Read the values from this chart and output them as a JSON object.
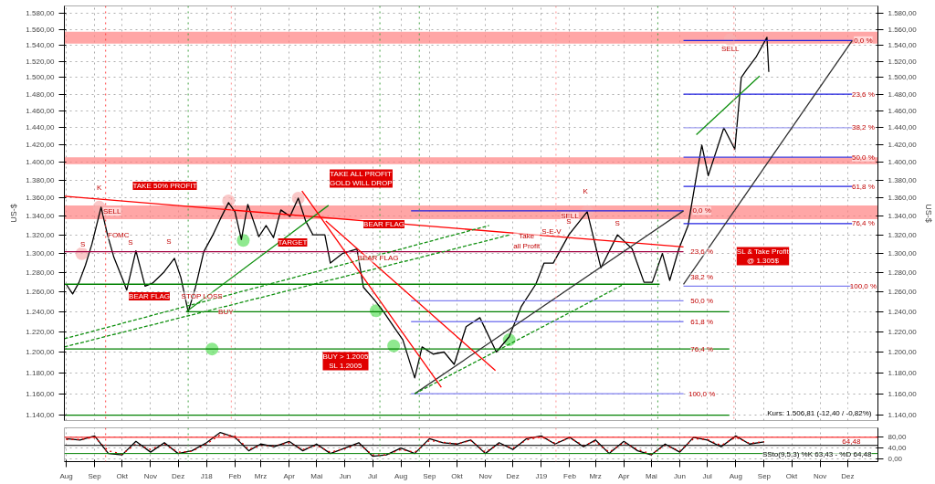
{
  "chart_data": [
    {
      "type": "line",
      "ylabel": "US-$",
      "log": "y",
      "grid": true,
      "tick_labels": "y",
      "xlim": [
        "2017-07-30",
        "2020-01-03"
      ],
      "xticks": [
        {
          "value": "2017-08-01",
          "label": null
        },
        {
          "value": "2017-09-01",
          "label": null
        },
        {
          "value": "2017-10-01",
          "label": null
        },
        {
          "value": "2017-11-01",
          "label": null
        },
        {
          "value": "2017-12-01",
          "label": null
        },
        {
          "value": "2018-01-01",
          "label": null
        },
        {
          "value": "2018-02-01",
          "label": null
        },
        {
          "value": "2018-03-01",
          "label": null
        },
        {
          "value": "2018-04-01",
          "label": null
        },
        {
          "value": "2018-05-01",
          "label": null
        },
        {
          "value": "2018-06-01",
          "label": null
        },
        {
          "value": "2018-07-01",
          "label": null
        },
        {
          "value": "2018-08-01",
          "label": null
        },
        {
          "value": "2018-09-01",
          "label": null
        },
        {
          "value": "2018-10-01",
          "label": null
        },
        {
          "value": "2018-11-01",
          "label": null
        },
        {
          "value": "2018-12-01",
          "label": null
        },
        {
          "value": "2019-01-01",
          "label": null
        },
        {
          "value": "2019-02-01",
          "label": null
        },
        {
          "value": "2019-03-01",
          "label": null
        },
        {
          "value": "2019-04-01",
          "label": null
        },
        {
          "value": "2019-05-01",
          "label": null
        },
        {
          "value": "2019-06-01",
          "label": null
        },
        {
          "value": "2019-07-01",
          "label": null
        },
        {
          "value": "2019-08-01",
          "label": null
        },
        {
          "value": "2019-09-01",
          "label": null
        },
        {
          "value": "2019-10-01",
          "label": null
        },
        {
          "value": "2019-11-01",
          "label": null
        },
        {
          "value": "2019-12-01",
          "label": null
        }
      ],
      "ylim": [
        1135,
        1590
      ],
      "yticks": [
        {
          "value": 1140,
          "label": "1.140,00"
        },
        {
          "value": 1160,
          "label": "1.160,00"
        },
        {
          "value": 1180,
          "label": "1.180,00"
        },
        {
          "value": 1200,
          "label": "1.200,00"
        },
        {
          "value": 1220,
          "label": "1.220,00"
        },
        {
          "value": 1240,
          "label": "1.240,00"
        },
        {
          "value": 1260,
          "label": "1.260,00"
        },
        {
          "value": 1280,
          "label": "1.280,00"
        },
        {
          "value": 1300,
          "label": "1.300,00"
        },
        {
          "value": 1320,
          "label": "1.320,00"
        },
        {
          "value": 1340,
          "label": "1.340,00"
        },
        {
          "value": 1360,
          "label": "1.360,00"
        },
        {
          "value": 1380,
          "label": "1.380,00"
        },
        {
          "value": 1400,
          "label": "1.400,00"
        },
        {
          "value": 1420,
          "label": "1.420,00"
        },
        {
          "value": 1440,
          "label": "1.440,00"
        },
        {
          "value": 1460,
          "label": "1.460,00"
        },
        {
          "value": 1480,
          "label": "1.480,00"
        },
        {
          "value": 1500,
          "label": "1.500,00"
        },
        {
          "value": 1520,
          "label": "1.520,00"
        },
        {
          "value": 1540,
          "label": "1.540,00"
        },
        {
          "value": 1560,
          "label": "1.560,00"
        },
        {
          "value": 1580,
          "label": "1.580,00"
        }
      ],
      "bands": [
        {
          "axis": "y",
          "from": 1542,
          "to": 1557,
          "color": "#ff8080"
        },
        {
          "axis": "y",
          "from": 1398,
          "to": 1406,
          "color": "#ff8080"
        },
        {
          "axis": "y",
          "from": 1337,
          "to": 1352,
          "color": "#ff8080"
        }
      ],
      "ref_lines": [
        {
          "axis": "x",
          "value": "2017-09-13",
          "color": "#ff4040",
          "line_style": "dotted"
        },
        {
          "axis": "x",
          "value": "2017-12-12",
          "color": "#40a040",
          "line_style": "dotted"
        },
        {
          "axis": "x",
          "value": "2018-01-28",
          "color": "#ff9090",
          "line_style": "dotted"
        },
        {
          "axis": "x",
          "value": "2018-07-09",
          "color": "#40a040",
          "line_style": "dotted"
        },
        {
          "axis": "x",
          "value": "2018-08-21",
          "color": "#40a040",
          "line_style": "dotted"
        },
        {
          "axis": "x",
          "value": "2019-01-17",
          "color": "#ff9090",
          "line_style": "dotted"
        },
        {
          "axis": "x",
          "value": "2019-05-08",
          "color": "#40a040",
          "line_style": "dotted"
        },
        {
          "axis": "x",
          "value": "2019-07-30",
          "color": "#ff9090",
          "line_style": "dotted"
        }
      ],
      "series": [
        {
          "type": "line",
          "color": "#000000",
          "x": [
            "2017-08-01",
            "2017-08-08",
            "2017-08-15",
            "2017-08-22",
            "2017-08-29",
            "2017-09-08",
            "2017-09-15",
            "2017-09-22",
            "2017-10-02",
            "2017-10-06",
            "2017-10-16",
            "2017-10-26",
            "2017-11-03",
            "2017-11-15",
            "2017-11-27",
            "2017-12-04",
            "2017-12-12",
            "2017-12-20",
            "2017-12-29",
            "2018-01-08",
            "2018-01-16",
            "2018-01-25",
            "2018-02-01",
            "2018-02-08",
            "2018-02-15",
            "2018-02-27",
            "2018-03-07",
            "2018-03-15",
            "2018-03-23",
            "2018-04-02",
            "2018-04-11",
            "2018-04-19",
            "2018-04-27",
            "2018-05-10",
            "2018-05-16",
            "2018-05-29",
            "2018-06-14",
            "2018-06-21",
            "2018-07-03",
            "2018-07-13",
            "2018-07-24",
            "2018-08-03",
            "2018-08-16",
            "2018-08-24",
            "2018-09-05",
            "2018-09-17",
            "2018-09-28",
            "2018-10-11",
            "2018-10-26",
            "2018-11-13",
            "2018-11-27",
            "2018-12-10",
            "2018-12-26",
            "2019-01-04",
            "2019-01-14",
            "2019-01-31",
            "2019-02-20",
            "2019-03-07",
            "2019-03-25",
            "2019-04-10",
            "2019-04-23",
            "2019-05-02",
            "2019-05-13",
            "2019-05-21",
            "2019-05-31",
            "2019-06-10",
            "2019-06-20",
            "2019-06-25",
            "2019-07-02",
            "2019-07-19",
            "2019-07-31",
            "2019-08-07",
            "2019-08-13",
            "2019-08-23",
            "2019-09-04",
            "2019-09-06"
          ],
          "values": [
            1268,
            1258,
            1270,
            1288,
            1310,
            1350,
            1320,
            1296,
            1272,
            1262,
            1303,
            1266,
            1269,
            1280,
            1295,
            1275,
            1240,
            1265,
            1302,
            1320,
            1337,
            1355,
            1345,
            1315,
            1353,
            1318,
            1330,
            1317,
            1347,
            1340,
            1360,
            1335,
            1320,
            1320,
            1290,
            1300,
            1305,
            1265,
            1252,
            1240,
            1225,
            1212,
            1175,
            1205,
            1198,
            1200,
            1188,
            1225,
            1234,
            1200,
            1215,
            1245,
            1268,
            1290,
            1290,
            1320,
            1345,
            1285,
            1320,
            1305,
            1270,
            1270,
            1300,
            1272,
            1305,
            1330,
            1390,
            1420,
            1385,
            1440,
            1415,
            1500,
            1510,
            1525,
            1550,
            1507
          ]
        },
        {
          "type": "line",
          "color": "#ff0000",
          "x": [
            "2017-07-30",
            "2019-06-05"
          ],
          "values": [
            1362,
            1307
          ]
        },
        {
          "type": "line",
          "color": "#a00040",
          "x": [
            "2017-07-30",
            "2019-06-05"
          ],
          "values": [
            1302,
            1302
          ]
        },
        {
          "type": "line",
          "color": "#008000",
          "x": [
            "2017-07-30",
            "2019-05-10"
          ],
          "values": [
            1268,
            1268
          ]
        },
        {
          "type": "line",
          "color": "#008000",
          "x": [
            "2017-12-10",
            "2019-07-25"
          ],
          "values": [
            1240,
            1240
          ]
        },
        {
          "type": "line",
          "color": "#008000",
          "x": [
            "2017-07-30",
            "2019-07-25"
          ],
          "values": [
            1203,
            1203
          ]
        },
        {
          "type": "line",
          "color": "#008000",
          "x": [
            "2017-07-30",
            "2019-07-25"
          ],
          "values": [
            1140,
            1140
          ]
        },
        {
          "type": "line",
          "color": "#2020e0",
          "x": [
            "2018-08-12",
            "2019-06-05"
          ],
          "values": [
            1346,
            1346
          ]
        },
        {
          "type": "line",
          "color": "#8080f0",
          "x": [
            "2018-08-12",
            "2019-06-05"
          ],
          "values": [
            1251,
            1251
          ]
        },
        {
          "type": "line",
          "color": "#8080f0",
          "x": [
            "2018-08-12",
            "2019-06-05"
          ],
          "values": [
            1230,
            1230
          ]
        },
        {
          "type": "line",
          "color": "#8080f0",
          "x": [
            "2018-08-12",
            "2019-06-05"
          ],
          "values": [
            1160,
            1160
          ]
        },
        {
          "type": "line",
          "color": "#2020e0",
          "x": [
            "2019-06-05",
            "2019-12-06"
          ],
          "values": [
            1546,
            1546
          ]
        },
        {
          "type": "line",
          "color": "#2020e0",
          "x": [
            "2019-06-05",
            "2019-12-06"
          ],
          "values": [
            1480,
            1480
          ]
        },
        {
          "type": "line",
          "color": "#a0a0f0",
          "x": [
            "2019-06-05",
            "2019-12-06"
          ],
          "values": [
            1440,
            1440
          ]
        },
        {
          "type": "line",
          "color": "#4040e0",
          "x": [
            "2019-06-05",
            "2019-12-06"
          ],
          "values": [
            1406,
            1406
          ]
        },
        {
          "type": "line",
          "color": "#2020e0",
          "x": [
            "2019-06-05",
            "2019-12-06"
          ],
          "values": [
            1373,
            1373
          ]
        },
        {
          "type": "line",
          "color": "#2020e0",
          "x": [
            "2019-06-05",
            "2019-12-06"
          ],
          "values": [
            1332,
            1332
          ]
        },
        {
          "type": "line",
          "color": "#8080f0",
          "x": [
            "2019-06-05",
            "2019-12-06"
          ],
          "values": [
            1266,
            1266
          ]
        },
        {
          "type": "line",
          "color": "#303030",
          "x": [
            "2019-06-05",
            "2019-12-06"
          ],
          "values": [
            1268,
            1546
          ]
        },
        {
          "type": "line",
          "color": "#303030",
          "x": [
            "2018-08-16",
            "2019-06-05"
          ],
          "values": [
            1160,
            1346
          ]
        },
        {
          "type": "line",
          "color": "#109010",
          "x": [
            "2017-12-10",
            "2018-05-14"
          ],
          "values": [
            1240,
            1352
          ]
        },
        {
          "type": "line",
          "color": "#109010",
          "line_style": "dashed",
          "x": [
            "2017-07-30",
            "2018-11-05"
          ],
          "values": [
            1213,
            1330
          ]
        },
        {
          "type": "line",
          "color": "#109010",
          "line_style": "dashed",
          "x": [
            "2017-07-30",
            "2018-11-28"
          ],
          "values": [
            1205,
            1320
          ]
        },
        {
          "type": "line",
          "color": "#109010",
          "line_style": "dashed",
          "x": [
            "2018-08-16",
            "2019-03-30"
          ],
          "values": [
            1160,
            1267
          ]
        },
        {
          "type": "line",
          "color": "#ff0000",
          "x": [
            "2018-04-15",
            "2018-09-14"
          ],
          "values": [
            1368,
            1166
          ]
        },
        {
          "type": "line",
          "color": "#ff0000",
          "x": [
            "2018-05-11",
            "2018-11-12"
          ],
          "values": [
            1335,
            1182
          ]
        },
        {
          "type": "line",
          "color": "#109010",
          "x": [
            "2019-06-19",
            "2019-08-27"
          ],
          "values": [
            1432,
            1502
          ]
        },
        {
          "type": "scatter",
          "color": "#60e060",
          "marker": "circle",
          "x": [
            "2018-01-07",
            "2018-02-10",
            "2018-07-05",
            "2018-07-24",
            "2018-11-27"
          ],
          "values": [
            1203,
            1314,
            1241,
            1206,
            1212
          ]
        },
        {
          "type": "scatter",
          "color": "#f8b0b0",
          "marker": "circle",
          "x": [
            "2017-08-18",
            "2017-09-06",
            "2018-01-25",
            "2018-04-11",
            "2019-02-20",
            "2019-07-26"
          ],
          "values": [
            1300,
            1350,
            1357,
            1360,
            1345,
            1547
          ]
        }
      ],
      "annotations": [
        {
          "text": "K",
          "x": "2017-09-06",
          "y": 1372
        },
        {
          "text": "SELL",
          "x": "2017-09-20",
          "y": 1345
        },
        {
          "text": "S",
          "x": "2017-08-19",
          "y": 1310
        },
        {
          "text": "S",
          "x": "2017-10-10",
          "y": 1312
        },
        {
          "text": "S",
          "x": "2017-11-21",
          "y": 1313
        },
        {
          "text": "FOMC",
          "x": "2017-09-27",
          "y": 1320
        },
        {
          "text": "STOP LOSS",
          "x": "2017-12-27",
          "y": 1256
        },
        {
          "text": "BUY",
          "x": "2018-01-22",
          "y": 1240
        },
        {
          "text": "BEAR FLAG",
          "x": "2018-07-07",
          "y": 1295
        },
        {
          "text": "Take\nall Profit",
          "x": "2018-12-16",
          "y": 1313
        },
        {
          "text": "S-E-V",
          "x": "2019-01-12",
          "y": 1324
        },
        {
          "text": "SELL",
          "x": "2019-02-01",
          "y": 1340
        },
        {
          "text": "K",
          "x": "2019-02-18",
          "y": 1368
        },
        {
          "text": "S",
          "x": "2019-01-31",
          "y": 1334
        },
        {
          "text": "S",
          "x": "2019-03-25",
          "y": 1332
        },
        {
          "text": "SELL",
          "x": "2019-07-26",
          "y": 1536
        },
        {
          "text": "0,0 %",
          "x": "2019-12-18",
          "y": 1546
        },
        {
          "text": "23,6 %",
          "x": "2019-12-18",
          "y": 1480
        },
        {
          "text": "38,2 %",
          "x": "2019-12-18",
          "y": 1440
        },
        {
          "text": "50,0 %",
          "x": "2019-12-18",
          "y": 1406
        },
        {
          "text": "61,8 %",
          "x": "2019-12-18",
          "y": 1373
        },
        {
          "text": "76,4 %",
          "x": "2019-12-18",
          "y": 1332
        },
        {
          "text": "100,0 %",
          "x": "2019-12-18",
          "y": 1266
        },
        {
          "text": "0,0 %",
          "x": "2019-06-25",
          "y": 1346
        },
        {
          "text": "23,6 %",
          "x": "2019-06-25",
          "y": 1302
        },
        {
          "text": "38,2 %",
          "x": "2019-06-25",
          "y": 1275
        },
        {
          "text": "50,0 %",
          "x": "2019-06-25",
          "y": 1251
        },
        {
          "text": "61,8 %",
          "x": "2019-06-25",
          "y": 1230
        },
        {
          "text": "76,4 %",
          "x": "2019-06-25",
          "y": 1203
        },
        {
          "text": "100,0 %",
          "x": "2019-06-25",
          "y": 1160
        },
        "BEAR FLAG",
        "TAKE 50% PROFIT",
        "TAKE ALL PROFIT\nGOLD WILL DROP",
        "TARGET",
        "BEAR FLAG",
        "BUY > 1.2005\nSL 1.2005",
        "SL & Take Profit\n@ 1.305$",
        "Kurs: 1.506,81 (-12,40 / -0,82%)"
      ]
    },
    {
      "type": "line",
      "grid": true,
      "xlim": [
        "2017-07-30",
        "2020-01-03"
      ],
      "xticks": [
        {
          "value": "2017-08-01",
          "label": "Aug"
        },
        {
          "value": "2017-09-01",
          "label": "Sep"
        },
        {
          "value": "2017-10-01",
          "label": "Okt"
        },
        {
          "value": "2017-11-01",
          "label": "Nov"
        },
        {
          "value": "2017-12-01",
          "label": "Dez"
        },
        {
          "value": "2018-01-01",
          "label": "J18"
        },
        {
          "value": "2018-02-01",
          "label": "Feb"
        },
        {
          "value": "2018-03-01",
          "label": "Mrz"
        },
        {
          "value": "2018-04-01",
          "label": "Apr"
        },
        {
          "value": "2018-05-01",
          "label": "Mai"
        },
        {
          "value": "2018-06-01",
          "label": "Jun"
        },
        {
          "value": "2018-07-01",
          "label": "Jul"
        },
        {
          "value": "2018-08-01",
          "label": "Aug"
        },
        {
          "value": "2018-09-01",
          "label": "Sep"
        },
        {
          "value": "2018-10-01",
          "label": "Okt"
        },
        {
          "value": "2018-11-01",
          "label": "Nov"
        },
        {
          "value": "2018-12-01",
          "label": "Dez"
        },
        {
          "value": "2019-01-01",
          "label": "J19"
        },
        {
          "value": "2019-02-01",
          "label": "Feb"
        },
        {
          "value": "2019-03-01",
          "label": "Mrz"
        },
        {
          "value": "2019-04-01",
          "label": "Apr"
        },
        {
          "value": "2019-05-01",
          "label": "Mai"
        },
        {
          "value": "2019-06-01",
          "label": "Jun"
        },
        {
          "value": "2019-07-01",
          "label": "Jul"
        },
        {
          "value": "2019-08-01",
          "label": "Aug"
        },
        {
          "value": "2019-09-01",
          "label": "Sep"
        },
        {
          "value": "2019-10-01",
          "label": "Okt"
        },
        {
          "value": "2019-11-01",
          "label": "Nov"
        },
        {
          "value": "2019-12-01",
          "label": "Dez"
        }
      ],
      "ylim": [
        -10,
        115
      ],
      "yticks": [
        {
          "value": 0,
          "label": "0,00"
        },
        {
          "value": 40,
          "label": "40,00"
        },
        {
          "value": 80,
          "label": "80,00"
        }
      ],
      "ref_lines": [
        {
          "axis": "y",
          "value": 80,
          "color": "#ff0000"
        },
        {
          "axis": "y",
          "value": 50,
          "color": "#000000"
        },
        {
          "axis": "y",
          "value": 20,
          "color": "#008000"
        },
        {
          "axis": "x",
          "value": "2017-09-13",
          "color": "#ff4040",
          "line_style": "dotted"
        },
        {
          "axis": "x",
          "value": "2017-12-12",
          "color": "#40a040",
          "line_style": "dotted"
        },
        {
          "axis": "x",
          "value": "2018-07-09",
          "color": "#40a040",
          "line_style": "dotted"
        },
        {
          "axis": "x",
          "value": "2018-08-21",
          "color": "#40a040",
          "line_style": "dotted"
        },
        {
          "axis": "x",
          "value": "2019-01-17",
          "color": "#ff9090",
          "line_style": "dotted"
        },
        {
          "axis": "x",
          "value": "2019-05-08",
          "color": "#40a040",
          "line_style": "dotted"
        }
      ],
      "series": [
        {
          "color": "#000000",
          "x": [
            "2017-08-01",
            "2017-08-16",
            "2017-09-01",
            "2017-09-16",
            "2017-10-01",
            "2017-10-16",
            "2017-11-01",
            "2017-11-16",
            "2017-12-01",
            "2017-12-16",
            "2018-01-01",
            "2018-01-16",
            "2018-02-01",
            "2018-02-16",
            "2018-03-01",
            "2018-03-16",
            "2018-04-01",
            "2018-04-16",
            "2018-05-01",
            "2018-05-16",
            "2018-06-01",
            "2018-06-16",
            "2018-07-01",
            "2018-07-16",
            "2018-08-01",
            "2018-08-16",
            "2018-09-01",
            "2018-09-16",
            "2018-10-01",
            "2018-10-16",
            "2018-11-01",
            "2018-11-16",
            "2018-12-01",
            "2018-12-16",
            "2019-01-01",
            "2019-01-16",
            "2019-02-01",
            "2019-02-16",
            "2019-03-01",
            "2019-03-16",
            "2019-04-01",
            "2019-04-16",
            "2019-05-01",
            "2019-05-16",
            "2019-06-01",
            "2019-06-16",
            "2019-07-01",
            "2019-07-16",
            "2019-08-01",
            "2019-08-16",
            "2019-09-01"
          ],
          "values": [
            75,
            70,
            85,
            20,
            15,
            65,
            25,
            60,
            20,
            30,
            60,
            98,
            80,
            30,
            55,
            45,
            65,
            30,
            55,
            20,
            40,
            60,
            10,
            15,
            40,
            20,
            75,
            60,
            55,
            70,
            20,
            60,
            35,
            75,
            85,
            55,
            80,
            45,
            70,
            20,
            65,
            30,
            15,
            55,
            25,
            80,
            70,
            45,
            85,
            55,
            63
          ]
        },
        {
          "color": "#e00000",
          "line_style": "dotted",
          "x": [
            "2017-08-01",
            "2017-08-16",
            "2017-09-01",
            "2017-09-16",
            "2017-10-01",
            "2017-10-16",
            "2017-11-01",
            "2017-11-16",
            "2017-12-01",
            "2017-12-16",
            "2018-01-01",
            "2018-01-16",
            "2018-02-01",
            "2018-02-16",
            "2018-03-01",
            "2018-03-16",
            "2018-04-01",
            "2018-04-16",
            "2018-05-01",
            "2018-05-16",
            "2018-06-01",
            "2018-06-16",
            "2018-07-01",
            "2018-07-16",
            "2018-08-01",
            "2018-08-16",
            "2018-09-01",
            "2018-09-16",
            "2018-10-01",
            "2018-10-16",
            "2018-11-01",
            "2018-11-16",
            "2018-12-01",
            "2018-12-16",
            "2019-01-01",
            "2019-01-16",
            "2019-02-01",
            "2019-02-16",
            "2019-03-01",
            "2019-03-16",
            "2019-04-01",
            "2019-04-16",
            "2019-05-01",
            "2019-05-16",
            "2019-06-01",
            "2019-06-16",
            "2019-07-01",
            "2019-07-16",
            "2019-08-01",
            "2019-08-16",
            "2019-09-01"
          ],
          "values": [
            72,
            72,
            80,
            30,
            18,
            55,
            35,
            55,
            25,
            28,
            55,
            90,
            85,
            35,
            50,
            48,
            60,
            35,
            50,
            25,
            38,
            55,
            15,
            15,
            35,
            25,
            68,
            62,
            55,
            68,
            25,
            55,
            40,
            70,
            82,
            58,
            78,
            50,
            65,
            25,
            60,
            35,
            18,
            50,
            30,
            75,
            72,
            50,
            80,
            58,
            64
          ]
        }
      ],
      "annotations": [
        {
          "text": "64,48",
          "x": "2019-12-05",
          "y": 64
        },
        "SSto(9,5,3) %K 63,43 - %D 64,48"
      ]
    }
  ]
}
